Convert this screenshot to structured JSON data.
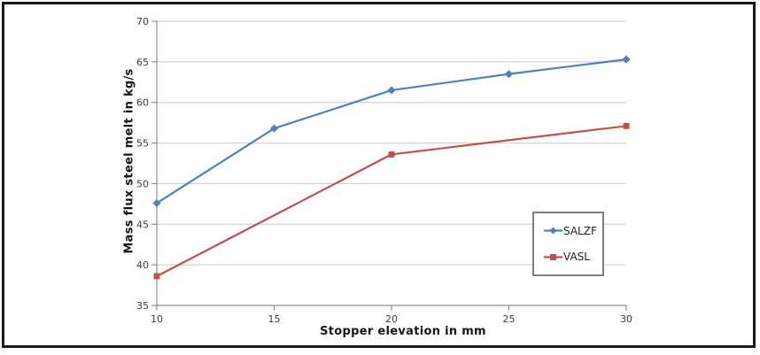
{
  "figure": {
    "background": "#ffffff",
    "border_color": "#1b1b1b"
  },
  "chart_data": {
    "type": "line",
    "title": "",
    "xlabel": "Stopper elevation in mm",
    "ylabel": "Mass flux steel melt in kg/s",
    "xlim": [
      10,
      30
    ],
    "ylim": [
      35,
      70
    ],
    "x_ticks": [
      "10",
      "15",
      "20",
      "25",
      "30"
    ],
    "y_ticks": [
      "35",
      "40",
      "45",
      "50",
      "55",
      "60",
      "65",
      "70"
    ],
    "grid": "horizontal-only",
    "legend": {
      "position": "inside-right",
      "entries": [
        "SALZF",
        "VASL"
      ]
    },
    "series": [
      {
        "name": "SALZF",
        "color": "#4F81BD",
        "marker": "diamond",
        "points": [
          [
            10,
            47.6
          ],
          [
            15,
            56.8
          ],
          [
            20,
            61.5
          ],
          [
            25,
            63.5
          ],
          [
            30,
            65.3
          ]
        ]
      },
      {
        "name": "VASL",
        "color": "#C0504D",
        "marker": "square",
        "points": [
          [
            10,
            38.6
          ],
          [
            20,
            53.6
          ],
          [
            30,
            57.1
          ]
        ]
      }
    ],
    "colors": {
      "gridline": "#c9c9c9",
      "axis": "#8e8e8e",
      "tick_label": "#3a3a3a",
      "axis_title": "#161616"
    }
  }
}
